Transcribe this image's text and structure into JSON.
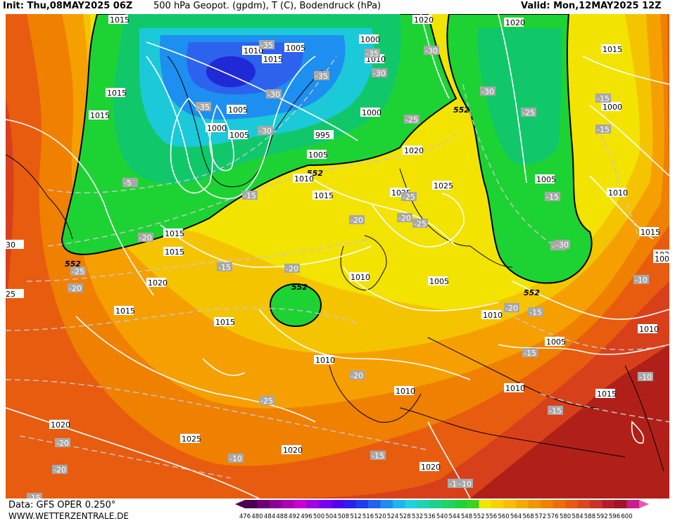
{
  "header": {
    "init": "Init: Thu,08MAY2025 06Z",
    "title": "500 hPa Geopot. (gpdm), T (C), Bodendruck (hPa)",
    "valid": "Valid: Mon,12MAY2025 12Z"
  },
  "footer": {
    "data_source": "Data: GFS OPER 0.250°",
    "website": "WWW.WETTERZENTRALE.DE"
  },
  "colors": {
    "cold_core": "#1f2ad6",
    "deep_blue": "#2d62ee",
    "blue": "#1d8ff0",
    "cyan": "#1cc9d8",
    "teal_green": "#10c86a",
    "green": "#1dd334",
    "yellow": "#f2e300",
    "gold": "#f5c400",
    "orange_light": "#f5a000",
    "orange": "#f08000",
    "orange_dark": "#e85c10",
    "red": "#d8401c",
    "dark_red": "#b02018",
    "isobar": "#ffffff",
    "temperature_line": "#c8c8c8",
    "contour_552": "#000000"
  },
  "colorbar": {
    "ticks": [
      "476",
      "480",
      "484",
      "488",
      "492",
      "496",
      "500",
      "504",
      "508",
      "512",
      "516",
      "520",
      "524",
      "528",
      "532",
      "536",
      "540",
      "544",
      "548",
      "552",
      "556",
      "560",
      "564",
      "568",
      "572",
      "576",
      "580",
      "584",
      "588",
      "592",
      "596",
      "600"
    ],
    "colors": [
      "#4a0050",
      "#6a0078",
      "#8a0096",
      "#aa00b4",
      "#c800d2",
      "#a000e6",
      "#7800f0",
      "#5000f0",
      "#2a1ef0",
      "#1e3cf0",
      "#1e64f0",
      "#1e8cf0",
      "#1eb4f0",
      "#1ed2e0",
      "#1ed2b4",
      "#1ed28c",
      "#1ed264",
      "#1ed23c",
      "#3cd21e",
      "#f0e600",
      "#f5d200",
      "#f5be00",
      "#f5aa00",
      "#f09600",
      "#f08200",
      "#eb6e0a",
      "#e65a14",
      "#dc461e",
      "#c83228",
      "#b41e28",
      "#a01428",
      "#c81e8c",
      "#e65ab4"
    ]
  },
  "map": {
    "contour_552_labels": [
      "552",
      "552",
      "552",
      "552",
      "552"
    ],
    "pressure_labels": [
      "1015",
      "1015",
      "1010",
      "1015",
      "1005",
      "1005",
      "1000",
      "1005",
      "995",
      "1000",
      "1005",
      "1010",
      "1015",
      "1000",
      "1010",
      "1020",
      "1025",
      "1025",
      "1020",
      "1015",
      "1000",
      "1005",
      "1010",
      "1015",
      "1020",
      "1015",
      "1015",
      "1020",
      "1015",
      "1015",
      "1010",
      "1010",
      "1005",
      "1010",
      "1005",
      "1010",
      "1010",
      "1015",
      "1010",
      "1020",
      "1025",
      "1020",
      "1020",
      "1015",
      "1020"
    ],
    "temperature_labels": [
      "-35",
      "-35",
      "-30",
      "-35",
      "-30",
      "-35",
      "-30",
      "-25",
      "-30",
      "-30",
      "-25",
      "-15",
      "-15",
      "-20",
      "-20",
      "-20",
      "-20",
      "-25",
      "-25",
      "-15",
      "-20",
      "-15",
      "-25",
      "-20",
      "-15",
      "-15",
      "-10",
      "-10",
      "-20",
      "-20",
      "-15",
      "-15",
      "-10",
      "-10",
      "-5",
      "-25",
      "-30",
      "-10",
      "-15",
      "-20",
      "-25",
      "-15"
    ],
    "edge_labels": [
      "30",
      "25",
      "100",
      "-10"
    ]
  }
}
